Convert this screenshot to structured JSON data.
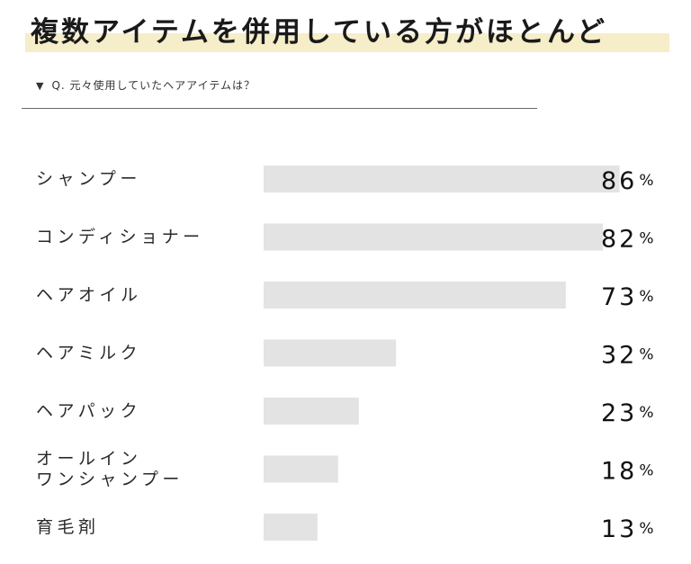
{
  "headline": "複数アイテムを併用している方がほとんど",
  "question": {
    "marker": "▼",
    "text": "Q. 元々使用していたヘアアイテムは？"
  },
  "colors": {
    "bar": "#e3e3e3",
    "headline_band": "#f6edc9"
  },
  "chart_data": {
    "type": "bar",
    "orientation": "horizontal",
    "categories": [
      [
        "シャンプー"
      ],
      [
        "コンディショナー"
      ],
      [
        "ヘアオイル"
      ],
      [
        "ヘアミルク"
      ],
      [
        "ヘアパック"
      ],
      [
        "オールイン",
        "ワンシャンプー"
      ],
      [
        "育毛剤"
      ]
    ],
    "values": [
      86,
      82,
      73,
      32,
      23,
      18,
      13
    ],
    "value_unit": "%",
    "xlim": [
      0,
      100
    ],
    "grid": false,
    "legend": "none"
  }
}
